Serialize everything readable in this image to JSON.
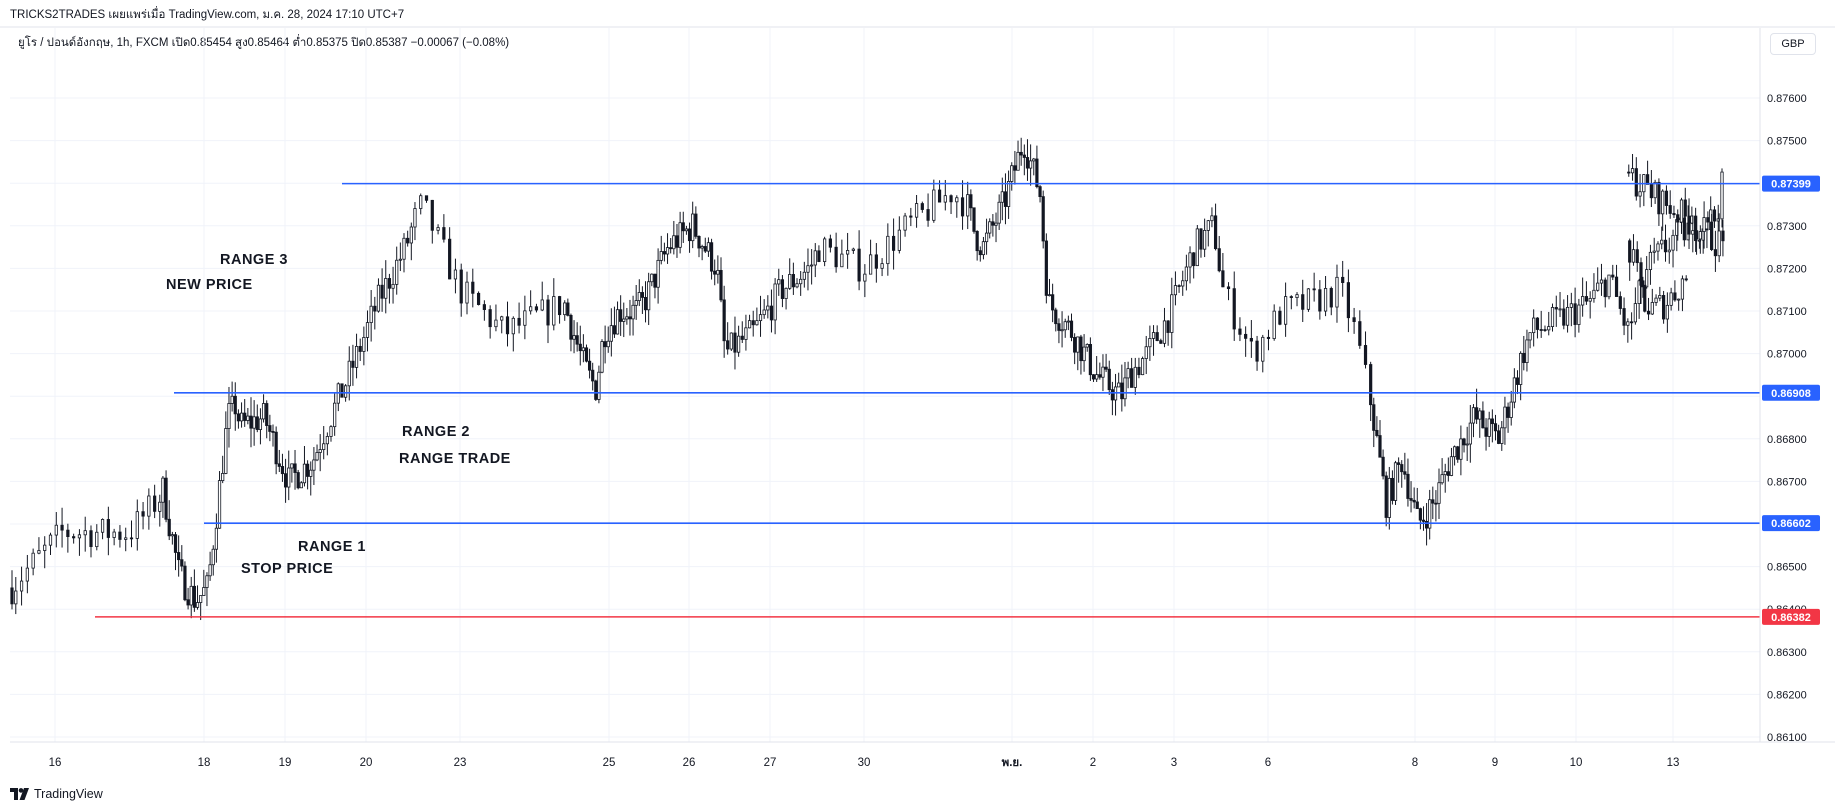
{
  "header": {
    "publish_line": "TRICKS2TRADES เผยแพร่เมื่อ TradingView.com, ม.ค. 28, 2024 17:10 UTC+7",
    "legend": "ยูโร / ปอนด์อังกฤษ, 1h, FXCM  เปิด0.85454  สูง0.85464  ต่ำ0.85375  ปิด0.85387  −0.00067 (−0.08%)",
    "currency_button": "GBP"
  },
  "footer": {
    "brand": "TradingView",
    "logo_icon": "tradingview-logo-icon"
  },
  "colors": {
    "level_blue": "#2962ff",
    "level_red": "#f23645",
    "candle": "#131722",
    "grid": "#f0f3fa"
  },
  "chart_data": {
    "type": "candlestick",
    "title": "",
    "ylim": [
      0.8605,
      0.8764
    ],
    "grid": true,
    "y_ticks": [
      "0.87600",
      "0.87500",
      "0.87400",
      "0.87300",
      "0.87200",
      "0.87100",
      "0.87000",
      "0.86900",
      "0.86800",
      "0.86700",
      "0.86600",
      "0.86500",
      "0.86400",
      "0.86300",
      "0.86200",
      "0.86100"
    ],
    "x_ticks": [
      "16",
      "18",
      "19",
      "20",
      "23",
      "25",
      "26",
      "27",
      "30",
      "พ.ย.",
      "2",
      "3",
      "6",
      "8",
      "9",
      "10",
      "13"
    ],
    "levels": [
      {
        "value": 0.87399,
        "label": "0.87399",
        "color": "#2962ff",
        "from_tick": "20"
      },
      {
        "value": 0.86908,
        "label": "0.86908",
        "color": "#2962ff",
        "from_tick": "18"
      },
      {
        "value": 0.86602,
        "label": "0.86602",
        "color": "#2962ff",
        "from_tick": "18"
      },
      {
        "value": 0.86382,
        "label": "0.86382",
        "color": "#f23645",
        "from_tick": "16"
      }
    ],
    "annotations": [
      {
        "lines": [
          "RANGE 3",
          "NEW PRICE"
        ],
        "near_level": 0.87399
      },
      {
        "lines": [
          "RANGE 2",
          "RANGE TRADE"
        ],
        "near_level": 0.86908
      },
      {
        "lines": [
          "RANGE 1",
          "STOP PRICE"
        ],
        "near_level": 0.86602
      }
    ],
    "close_path": {
      "x_day": [
        0.0,
        0.35,
        0.8,
        1.05,
        1.25,
        1.45,
        1.6,
        1.85,
        1.95,
        2.0,
        2.3,
        2.6,
        2.9,
        3.0,
        3.3,
        3.6,
        3.9,
        4.05,
        4.3,
        4.6,
        4.9,
        5.0,
        5.2,
        5.3,
        5.4,
        5.5,
        5.7,
        5.9,
        6.0,
        6.3,
        6.6,
        6.9,
        7.0,
        7.3,
        7.6,
        7.9,
        8.0,
        8.3,
        8.6,
        8.9,
        9.0,
        9.1,
        9.2,
        9.45,
        9.7,
        9.9,
        10.0,
        10.3,
        10.6,
        10.9,
        11.0,
        11.2,
        11.45,
        11.7,
        11.9,
        12.0,
        12.2,
        12.4,
        12.6,
        12.8,
        12.9,
        13.0,
        13.2,
        13.4,
        13.6,
        13.8,
        14.0,
        14.3,
        14.6,
        14.75,
        14.9,
        15.0,
        15.3,
        15.6,
        15.8,
        16.0,
        16.2,
        16.5,
        16.9,
        17.0,
        17.4,
        17.7,
        18.0,
        18.2,
        18.4,
        18.6
      ],
      "close": [
        0.8645,
        0.8658,
        0.8658,
        0.8668,
        0.8648,
        0.8642,
        0.8645,
        0.8685,
        0.8688,
        0.8683,
        0.8685,
        0.867,
        0.8675,
        0.868,
        0.8695,
        0.8712,
        0.8725,
        0.8735,
        0.8715,
        0.8705,
        0.871,
        0.8712,
        0.87,
        0.8695,
        0.8692,
        0.8705,
        0.871,
        0.871,
        0.8712,
        0.8725,
        0.873,
        0.872,
        0.87,
        0.8705,
        0.8715,
        0.872,
        0.8725,
        0.872,
        0.873,
        0.8738,
        0.8735,
        0.8728,
        0.8725,
        0.8735,
        0.875,
        0.8738,
        0.8712,
        0.8705,
        0.8695,
        0.869,
        0.8695,
        0.87,
        0.871,
        0.8725,
        0.873,
        0.8715,
        0.87,
        0.871,
        0.8712,
        0.8715,
        0.8705,
        0.869,
        0.8665,
        0.8675,
        0.866,
        0.8665,
        0.8675,
        0.8685,
        0.868,
        0.869,
        0.87,
        0.8705,
        0.8708,
        0.8712,
        0.8718,
        0.8705,
        0.872,
        0.8728,
        0.8732,
        0.8742,
        0.8735,
        0.873,
        0.8725,
        0.871,
        0.8712,
        0.8718
      ]
    }
  }
}
